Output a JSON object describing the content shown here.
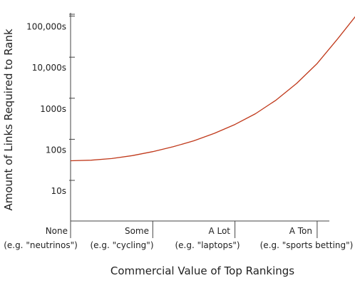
{
  "chart_data": {
    "type": "line",
    "title": "",
    "xlabel": "Commercial Value of Top Rankings",
    "ylabel": "Amount of Links Required to Rank",
    "y_scale": "log",
    "y_ticks": [
      "10s",
      "100s",
      "1000s",
      "10,000s",
      "100,000s"
    ],
    "x_categories": [
      {
        "label": "None",
        "example": "(e.g. \"neutrinos\")"
      },
      {
        "label": "Some",
        "example": "(e.g. \"cycling\")"
      },
      {
        "label": "A Lot",
        "example": "(e.g. \"laptops\")"
      },
      {
        "label": "A Ton",
        "example": "(e.g. \"sports betting\")"
      }
    ],
    "series": [
      {
        "color": "#c0391b",
        "x": [
          0,
          0.25,
          0.5,
          0.75,
          1,
          1.25,
          1.5,
          1.75,
          2,
          2.25,
          2.5,
          2.75,
          3,
          3.25,
          3.5
        ],
        "y": [
          30,
          31,
          34,
          40,
          50,
          66,
          92,
          140,
          230,
          420,
          900,
          2300,
          7000,
          28000,
          150000
        ]
      }
    ],
    "xlim": [
      0,
      3.5
    ],
    "ylim_log10": [
      0,
      5.4
    ],
    "grid": false
  },
  "colors": {
    "axis": "#444444",
    "line": "#c0391b",
    "text": "#222222"
  }
}
